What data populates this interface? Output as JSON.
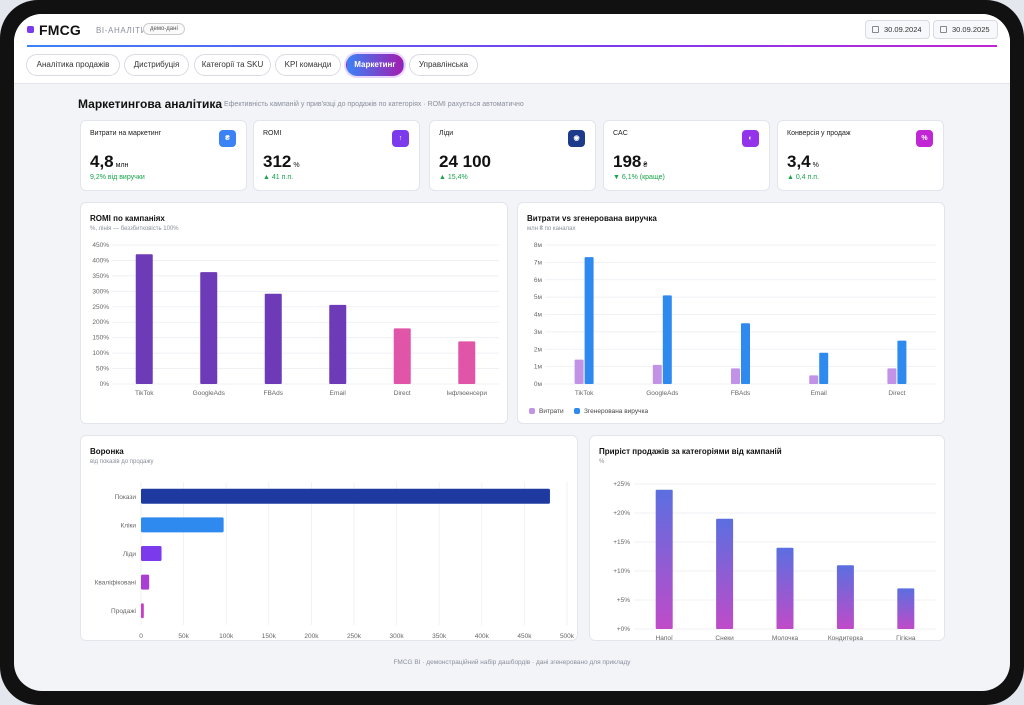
{
  "app": {
    "brand": "FMCG",
    "subtitle": "BI-АНАЛІТИКА",
    "badge": "демо-дані",
    "accent": "#7c3aed"
  },
  "dates": {
    "from": "30.09.2024",
    "to": "30.09.2025"
  },
  "tabs": [
    {
      "label": "Аналітика продажів",
      "active": false
    },
    {
      "label": "Дистрибуція",
      "active": false
    },
    {
      "label": "Категорії та SKU",
      "active": false
    },
    {
      "label": "KPI команди",
      "active": false
    },
    {
      "label": "Маркетинг",
      "active": true
    },
    {
      "label": "Управлінська",
      "active": false
    }
  ],
  "page": {
    "title": "Маркетингова аналітика",
    "subtitle": "Ефективність кампаній у прив'язці до продажів по категоріях · ROMI рахується автоматично"
  },
  "kpis": [
    {
      "label": "Витрати на маркетинг",
      "value": "4,8",
      "unit": "млн",
      "delta": "9,2% від виручки",
      "icon": "₴",
      "icon_name": "hryvnia-icon",
      "color": "#3b82f6"
    },
    {
      "label": "ROMI",
      "value": "312",
      "unit": "%",
      "delta": "▲ 41 п.п.",
      "icon": "↑",
      "icon_name": "arrow-up-icon",
      "color": "#7c3aed"
    },
    {
      "label": "Ліди",
      "value": "24 100",
      "unit": "",
      "delta": "▲ 15,4%",
      "icon": "◉",
      "icon_name": "eye-icon",
      "color": "#1e3a8a"
    },
    {
      "label": "CAC",
      "value": "198",
      "unit": "₴",
      "delta": "▼ 6,1% (краще)",
      "icon": "◐",
      "icon_name": "half-circle-icon",
      "color": "#9333ea"
    },
    {
      "label": "Конверсія у продаж",
      "value": "3,4",
      "unit": "%",
      "delta": "▲ 0,4 п.п.",
      "icon": "%",
      "icon_name": "percent-icon",
      "color": "#c026d3"
    }
  ],
  "chart_data": [
    {
      "type": "bar",
      "title": "ROMI по кампаніях",
      "subtitle": "%, лінія — беззбитковість 100%",
      "categories": [
        "TikTok",
        "GoogleAds",
        "FBAds",
        "Email",
        "Direct",
        "Інфлюенсери"
      ],
      "values": [
        420,
        362,
        292,
        256,
        180,
        138
      ],
      "colors": [
        "#6d3ab8",
        "#6d3ab8",
        "#6d3ab8",
        "#6d3ab8",
        "#e055a8",
        "#e055a8"
      ],
      "yticks": [
        "0%",
        "50%",
        "100%",
        "150%",
        "200%",
        "250%",
        "300%",
        "350%",
        "400%",
        "450%"
      ],
      "ylim": [
        0,
        450
      ]
    },
    {
      "type": "bar",
      "title": "Витрати vs згенерована виручка",
      "subtitle": "млн ₴ по каналах",
      "categories": [
        "TikTok",
        "GoogleAds",
        "FBAds",
        "Email",
        "Direct"
      ],
      "series": [
        {
          "name": "Витрати",
          "values": [
            1.4,
            1.1,
            0.9,
            0.5,
            0.9
          ],
          "color": "#c192e6"
        },
        {
          "name": "Згенерована виручка",
          "values": [
            7.3,
            5.1,
            3.5,
            1.8,
            2.5
          ],
          "color": "#2f8af0"
        }
      ],
      "yticks": [
        "0м",
        "1м",
        "2м",
        "3м",
        "4м",
        "5м",
        "6м",
        "7м",
        "8м"
      ],
      "ylim": [
        0,
        8
      ]
    },
    {
      "type": "bar",
      "orientation": "horizontal",
      "title": "Воронка",
      "subtitle": "від показів до продажу",
      "categories": [
        "Покази",
        "Кліки",
        "Ліди",
        "Кваліфіковані",
        "Продажі"
      ],
      "values": [
        480000,
        97000,
        24100,
        9600,
        3300
      ],
      "colors": [
        "#1e3aa0",
        "#2f8af0",
        "#7c3aed",
        "#a83ed6",
        "#c93ec6"
      ],
      "xticks": [
        "0",
        "50k",
        "100k",
        "150k",
        "200k",
        "250k",
        "300k",
        "350k",
        "400k",
        "450k",
        "500k"
      ],
      "xlim": [
        0,
        500000
      ]
    },
    {
      "type": "bar",
      "title": "Приріст продажів за категоріями від кампаній",
      "subtitle": "%",
      "categories": [
        "Напої",
        "Снеки",
        "Молочка",
        "Кондитерка",
        "Гігієна"
      ],
      "values": [
        24,
        19,
        14,
        11,
        7
      ],
      "yticks": [
        "+0%",
        "+5%",
        "+10%",
        "+15%",
        "+20%",
        "+25%"
      ],
      "ylim": [
        0,
        25
      ]
    }
  ],
  "footer": "FMCG BI · демонстраційний набір дашбордів · дані згенеровано для прикладу"
}
